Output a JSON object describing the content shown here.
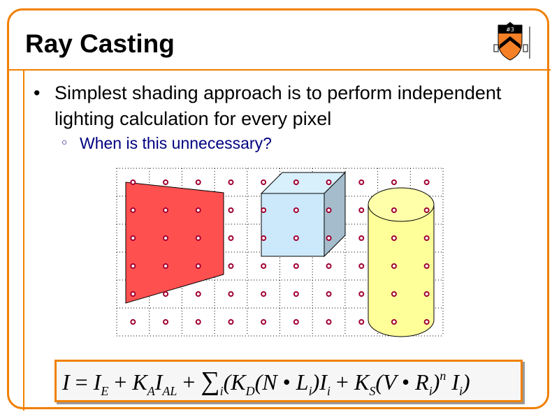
{
  "slide": {
    "title": "Ray Casting",
    "logo_text": "Princeton University shield",
    "bullets": [
      {
        "text": "Simplest shading approach is to perform independent lighting calculation for every pixel",
        "marker": "•"
      },
      {
        "text": "When is this unnecessary?",
        "marker": "○"
      }
    ],
    "colors": {
      "border": "#f08000",
      "subbullet": "#000080",
      "sample_dot": "#a00030",
      "quad": "#ff5050",
      "cube_front": "#cce9fb",
      "cube_top": "#d8effc",
      "cube_side": "#a4bccb",
      "cylinder": "#ffff99"
    },
    "figure": {
      "grid_columns": 10,
      "grid_rows": 6,
      "objects": [
        "quad",
        "cube",
        "cylinder"
      ]
    },
    "equation": [
      {
        "t": "I",
        "k": "var"
      },
      {
        "t": " = ",
        "k": "op"
      },
      {
        "t": "I",
        "k": "var"
      },
      {
        "t": "E",
        "k": "sub"
      },
      {
        "t": " + ",
        "k": "op"
      },
      {
        "t": "K",
        "k": "var"
      },
      {
        "t": "A",
        "k": "sub"
      },
      {
        "t": "I",
        "k": "var"
      },
      {
        "t": "AL",
        "k": "sub"
      },
      {
        "t": " + ",
        "k": "op"
      },
      {
        "t": "∑",
        "k": "sig"
      },
      {
        "t": "i",
        "k": "sub"
      },
      {
        "t": "(K",
        "k": "var"
      },
      {
        "t": "D",
        "k": "sub"
      },
      {
        "t": "(N ",
        "k": "var"
      },
      {
        "t": "•",
        "k": "op"
      },
      {
        "t": " L",
        "k": "var"
      },
      {
        "t": "i",
        "k": "sub"
      },
      {
        "t": ")I",
        "k": "var"
      },
      {
        "t": "i",
        "k": "sub"
      },
      {
        "t": " + ",
        "k": "op"
      },
      {
        "t": "K",
        "k": "var"
      },
      {
        "t": "S",
        "k": "sub"
      },
      {
        "t": "(V ",
        "k": "var"
      },
      {
        "t": "•",
        "k": "op"
      },
      {
        "t": " R",
        "k": "var"
      },
      {
        "t": "i",
        "k": "sub"
      },
      {
        "t": ")",
        "k": "var"
      },
      {
        "t": "n",
        "k": "sup"
      },
      {
        "t": " I",
        "k": "var"
      },
      {
        "t": "i",
        "k": "sub"
      },
      {
        "t": ")",
        "k": "var"
      }
    ]
  }
}
